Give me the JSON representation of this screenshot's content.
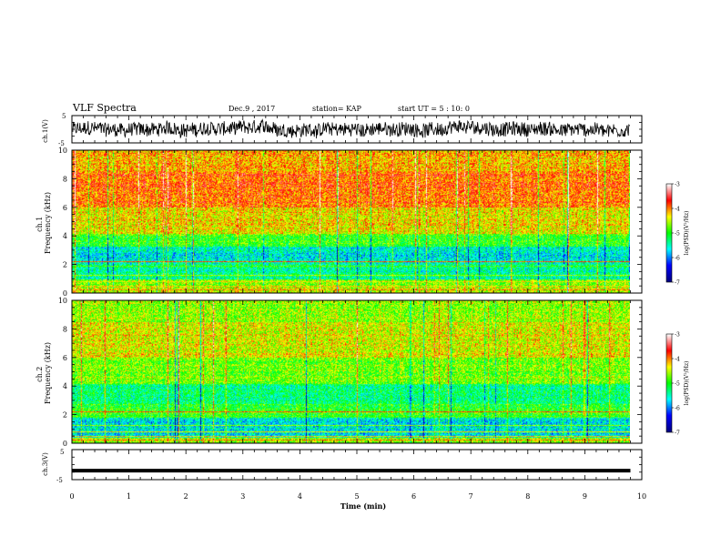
{
  "header": {
    "title": "VLF Spectra",
    "date": "Dec.9 , 2017",
    "station": "station= KAP",
    "start": "start UT = 5 : 10: 0"
  },
  "chart_data": [
    {
      "type": "line",
      "panel": "ch1_waveform",
      "ylabel": "ch.1(V)",
      "ylim": [
        -5,
        5
      ],
      "yticks": [
        "5",
        "-5"
      ],
      "xlim": [
        0,
        10
      ],
      "data_extent_min": 9.8,
      "description": "dense noisy waveform roughly centred at 0 V"
    },
    {
      "type": "heatmap",
      "panel": "ch1_spectrogram",
      "ylabel": "ch.1\nFrequency (kHz)",
      "ylim": [
        0,
        10
      ],
      "yticks": [
        "0",
        "2",
        "4",
        "6",
        "8",
        "10"
      ],
      "xlim": [
        0,
        10
      ],
      "data_extent_min": 9.8,
      "bands_khz": [
        {
          "from": 0,
          "to": 0.4,
          "level": -4.4
        },
        {
          "from": 0.4,
          "to": 1.0,
          "level": -4.7
        },
        {
          "from": 1.0,
          "to": 2.2,
          "level": -5.4
        },
        {
          "from": 2.2,
          "to": 3.3,
          "level": -5.6
        },
        {
          "from": 3.3,
          "to": 4.2,
          "level": -4.9
        },
        {
          "from": 4.2,
          "to": 6.0,
          "level": -4.3
        },
        {
          "from": 6.0,
          "to": 8.5,
          "level": -3.9
        },
        {
          "from": 8.5,
          "to": 10.0,
          "level": -4.1
        }
      ],
      "colorbar": {
        "min": -7,
        "max": -3,
        "ticks": [
          "-3",
          "-4",
          "-5",
          "-6",
          "-7"
        ],
        "label": "log(PSD)(V²/Hz)"
      }
    },
    {
      "type": "heatmap",
      "panel": "ch2_spectrogram",
      "ylabel": "ch.2\nFrequency (kHz)",
      "ylim": [
        0,
        10
      ],
      "yticks": [
        "0",
        "2",
        "4",
        "6",
        "8",
        "10"
      ],
      "xlim": [
        0,
        10
      ],
      "data_extent_min": 9.8,
      "bands_khz": [
        {
          "from": 0,
          "to": 0.4,
          "level": -4.6
        },
        {
          "from": 0.4,
          "to": 1.8,
          "level": -5.6
        },
        {
          "from": 1.8,
          "to": 2.8,
          "level": -5.0
        },
        {
          "from": 2.8,
          "to": 4.2,
          "level": -5.3
        },
        {
          "from": 4.2,
          "to": 6.0,
          "level": -4.7
        },
        {
          "from": 6.0,
          "to": 8.5,
          "level": -4.4
        },
        {
          "from": 8.5,
          "to": 10.0,
          "level": -4.6
        }
      ],
      "colorbar": {
        "min": -7,
        "max": -3,
        "ticks": [
          "-3",
          "-4",
          "-5",
          "-6",
          "-7"
        ],
        "label": "log(PSD)(V²/Hz)"
      }
    },
    {
      "type": "line",
      "panel": "ch3_waveform",
      "ylabel": "ch.3(V)",
      "ylim": [
        -5,
        5
      ],
      "yticks": [
        "5",
        "-5"
      ],
      "xlim": [
        0,
        10
      ],
      "data_extent_min": 9.8,
      "x": [
        0,
        9.8
      ],
      "y": [
        -2,
        -2
      ]
    }
  ],
  "xaxis": {
    "label": "Time (min)",
    "ticks": [
      "0",
      "1",
      "2",
      "3",
      "4",
      "5",
      "6",
      "7",
      "8",
      "9",
      "10"
    ]
  },
  "colors": {
    "scale": [
      "#000080",
      "#0000ff",
      "#00ffff",
      "#00ff00",
      "#ffff00",
      "#ff0000",
      "#ffffff"
    ]
  }
}
